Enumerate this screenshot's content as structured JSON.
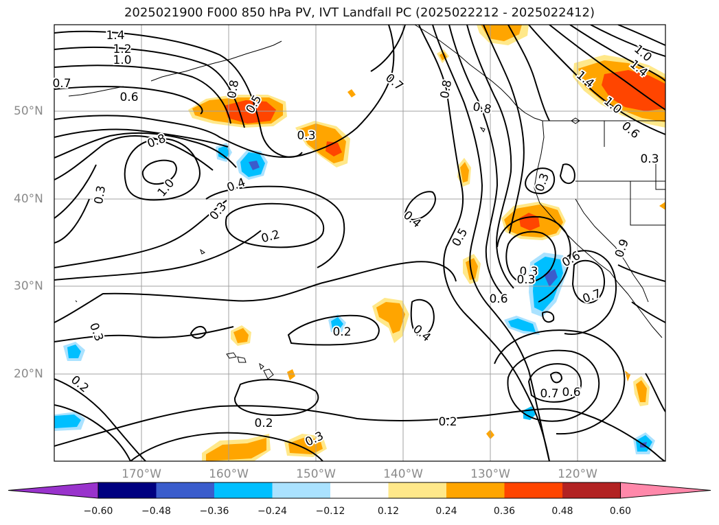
{
  "title": "2025021900 F000 850 hPa PV, IVT Landfall PC (2025022212 - 2025022412)",
  "lon_labels": [
    "170°W",
    "160°W",
    "150°W",
    "140°W",
    "130°W",
    "120°W"
  ],
  "lat_labels": [
    "50°N",
    "40°N",
    "30°N",
    "20°N"
  ],
  "contour_labels": [
    "1.4",
    "1.2",
    "1.0",
    "0.7",
    "0.6",
    "0.8",
    "0.5",
    "0.3",
    "0.8",
    "1.0",
    "0.3",
    "0.4",
    "0.3",
    "0.2",
    "0.7",
    "0.8",
    "0.8",
    "0.4",
    "0.5",
    "0.3",
    "0.3",
    "0.6",
    "0.6",
    "0.7",
    "0.4",
    "0.2",
    "0.3",
    "0.2",
    "0.2",
    "0.3",
    "0.2",
    "0.7",
    "0.6",
    "1.4",
    "1.0",
    "1.4",
    "1.0",
    "0.6",
    "0.3",
    "0.3",
    "0.9"
  ],
  "colorbar": {
    "ticks": [
      "−0.60",
      "−0.48",
      "−0.36",
      "−0.24",
      "−0.12",
      "0.12",
      "0.24",
      "0.36",
      "0.48",
      "0.60"
    ],
    "colors": [
      "#9933cc",
      "#000080",
      "#3a5ccc",
      "#00bfff",
      "#aae2ff",
      "#ffffff",
      "#ffe88a",
      "#ffa500",
      "#ff4500",
      "#b22222",
      "#ff88aa"
    ]
  }
}
